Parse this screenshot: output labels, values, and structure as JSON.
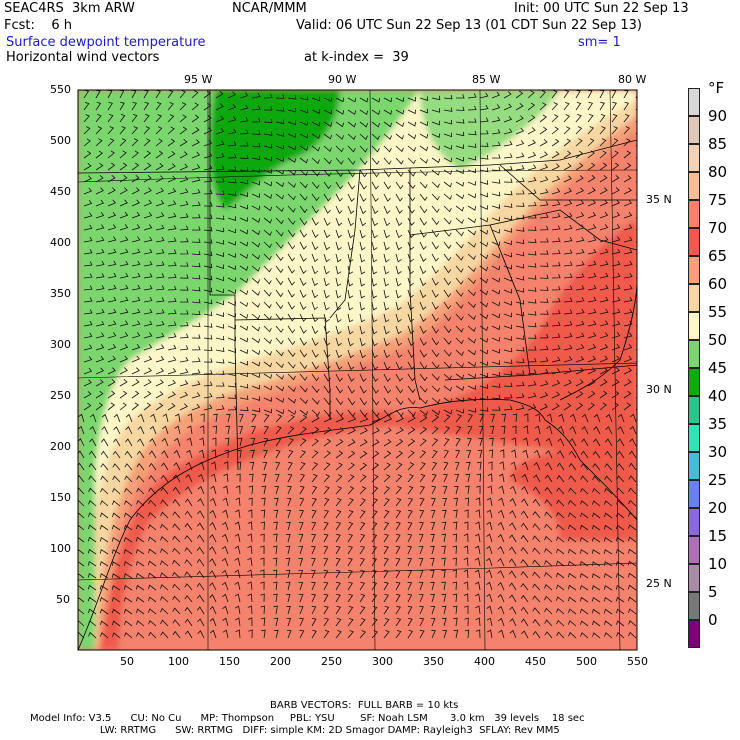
{
  "header": {
    "model": "SEAC4RS  3km ARW",
    "org": "NCAR/MMM",
    "init": "Init: 00 UTC Sun 22 Sep 13",
    "fcst": "Fcst:    6 h",
    "valid": "Valid: 06 UTC Sun 22 Sep 13 (01 CDT Sun 22 Sep 13)",
    "field": "Surface dewpoint temperature",
    "smoothing": "sm= 1",
    "vectors": "Horizontal wind vectors",
    "level": "at k-index =  39"
  },
  "axes": {
    "x_ticks": [
      "50",
      "100",
      "150",
      "200",
      "250",
      "300",
      "350",
      "400",
      "450",
      "500",
      "550"
    ],
    "y_ticks": [
      "550",
      "500",
      "450",
      "400",
      "350",
      "300",
      "250",
      "200",
      "150",
      "100",
      "50"
    ],
    "lon_labels": [
      "95 W",
      "90 W",
      "85 W",
      "80 W"
    ],
    "lat_labels": [
      "35 N",
      "30 N",
      "25 N"
    ]
  },
  "colorbar": {
    "unit": "°F",
    "levels": [
      "90",
      "85",
      "80",
      "75",
      "70",
      "65",
      "60",
      "55",
      "50",
      "45",
      "40",
      "35",
      "30",
      "25",
      "20",
      "15",
      "10",
      "5",
      "0"
    ],
    "colors": [
      "#d8d8d8",
      "#e0c8b8",
      "#f3d2b8",
      "#f8bd95",
      "#f4826d",
      "#ef5a4c",
      "#f5a078",
      "#f6d7a2",
      "#fcf6c8",
      "#7cd66e",
      "#11a811",
      "#2cc48a",
      "#36e0b8",
      "#4ab8d8",
      "#6a82e8",
      "#8a6ad8",
      "#b070b8",
      "#a88ca8",
      "#787878",
      "#7a007a"
    ]
  },
  "footer": {
    "barb": "BARB VECTORS:  FULL BARB = 10 kts",
    "line1": "Model Info: V3.5      CU: No Cu      MP: Thompson     PBL: YSU        SF: Noah LSM       3.0 km   39 levels    18 sec",
    "line2": "                      LW: RRTMG      SW: RRTMG   DIFF: simple KM: 2D Smagor DAMP: Rayleigh3  SFLAY: Rev MM5"
  }
}
